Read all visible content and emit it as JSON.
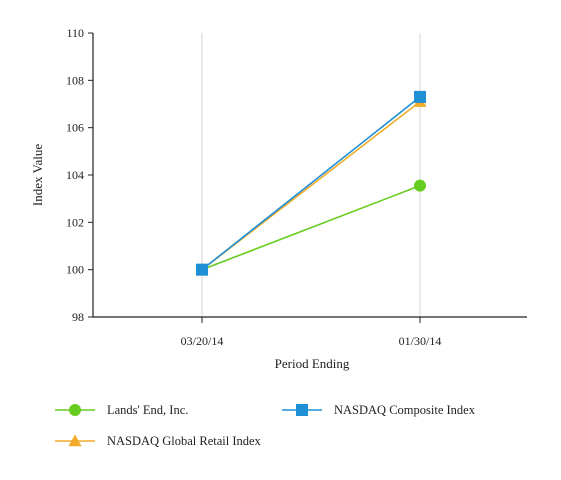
{
  "chart_data": {
    "type": "line",
    "title": "",
    "xlabel": "Period Ending",
    "ylabel": "Index Value",
    "categories": [
      "03/20/14",
      "01/30/14"
    ],
    "ylim": [
      98,
      110
    ],
    "yticks": [
      98,
      100,
      102,
      104,
      106,
      108,
      110
    ],
    "grid": "vertical",
    "legend_position": "bottom",
    "series": [
      {
        "name": "Lands' End, Inc.",
        "values": [
          100,
          103.55
        ],
        "color": "#66cc1f",
        "marker": "circle"
      },
      {
        "name": "NASDAQ Composite Index",
        "values": [
          100,
          107.3
        ],
        "color": "#1f8fd6",
        "marker": "square"
      },
      {
        "name": "NASDAQ Global Retail Index",
        "values": [
          100,
          107.1
        ],
        "color": "#f2ac2a",
        "marker": "triangle"
      }
    ],
    "draw_order": [
      0,
      2,
      1
    ]
  }
}
